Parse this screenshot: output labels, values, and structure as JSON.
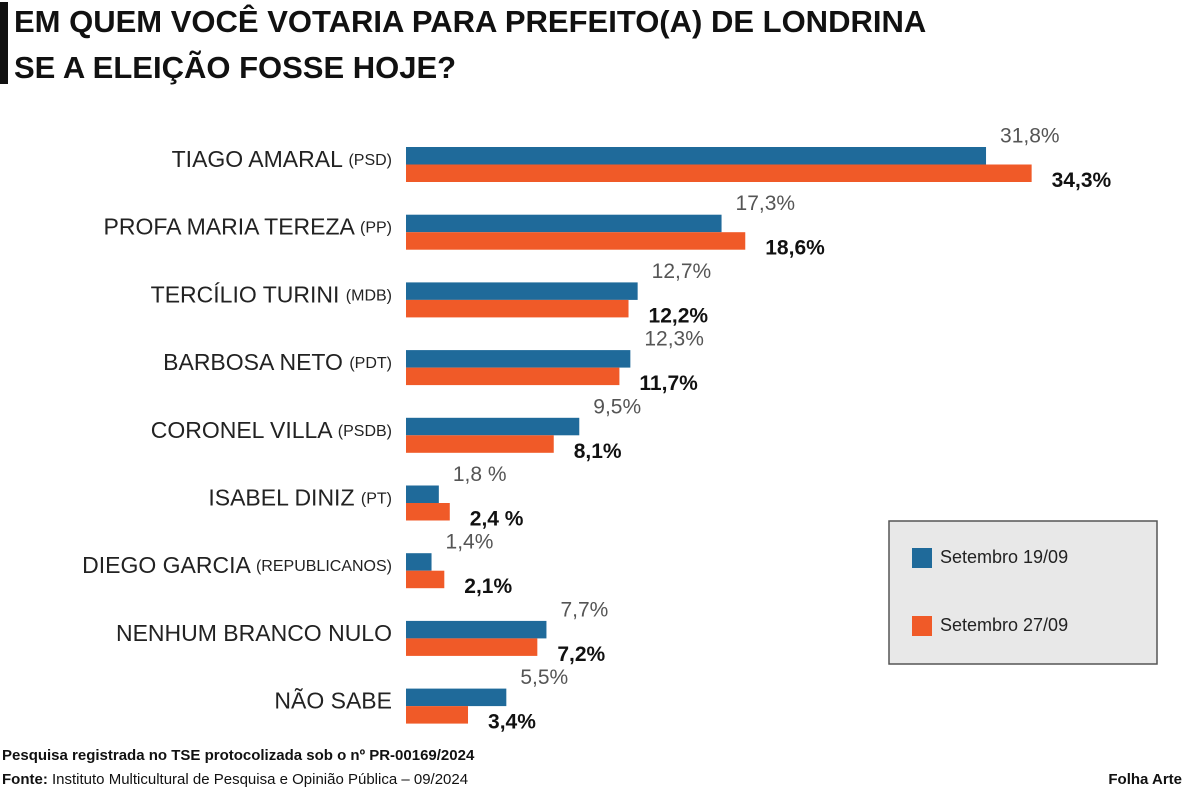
{
  "chart_data": {
    "type": "bar",
    "orientation": "horizontal",
    "title": [
      "EM QUEM VOCÊ VOTARIA PARA PREFEITO(A) DE LONDRINA",
      "SE A ELEIÇÃO FOSSE HOJE?"
    ],
    "categories": [
      "TIAGO AMARAL",
      "PROFA MARIA TEREZA",
      "TERCÍLIO TURINI",
      "BARBOSA NETO",
      "CORONEL VILLA",
      "ISABEL DINIZ",
      "DIEGO GARCIA",
      "NENHUM BRANCO NULO",
      "NÃO SABE"
    ],
    "parties": [
      "(PSD)",
      "(PP)",
      "(MDB)",
      "(PDT)",
      "(PSDB)",
      "(PT)",
      "(REPUBLICANOS)",
      null,
      null
    ],
    "series": [
      {
        "name": "Setembro 19/09",
        "color": "#1f6a9a",
        "values": [
          31.8,
          17.3,
          12.7,
          12.3,
          9.5,
          1.8,
          1.4,
          7.7,
          5.5
        ],
        "value_labels": [
          "31,8%",
          "17,3%",
          "12,7%",
          "12,3%",
          "9,5%",
          "1,8 %",
          "1,4%",
          "7,7%",
          "5,5%"
        ]
      },
      {
        "name": "Setembro 27/09",
        "color": "#f05a28",
        "values": [
          34.3,
          18.6,
          12.2,
          11.7,
          8.1,
          2.4,
          2.1,
          7.2,
          3.4
        ],
        "value_labels": [
          "34,3%",
          "18,6%",
          "12,2%",
          "11,7%",
          "8,1%",
          "2,4 %",
          "2,1%",
          "7,2%",
          "3,4%"
        ]
      }
    ],
    "legend": "bottom-right",
    "note": "Pesquisa registrada no TSE protocolizada sob o nº PR-00169/2024",
    "source_label": "Fonte:",
    "source": "Instituto Multicultural de Pesquisa e Opinião Pública – 09/2024",
    "credit": "Folha Arte"
  }
}
